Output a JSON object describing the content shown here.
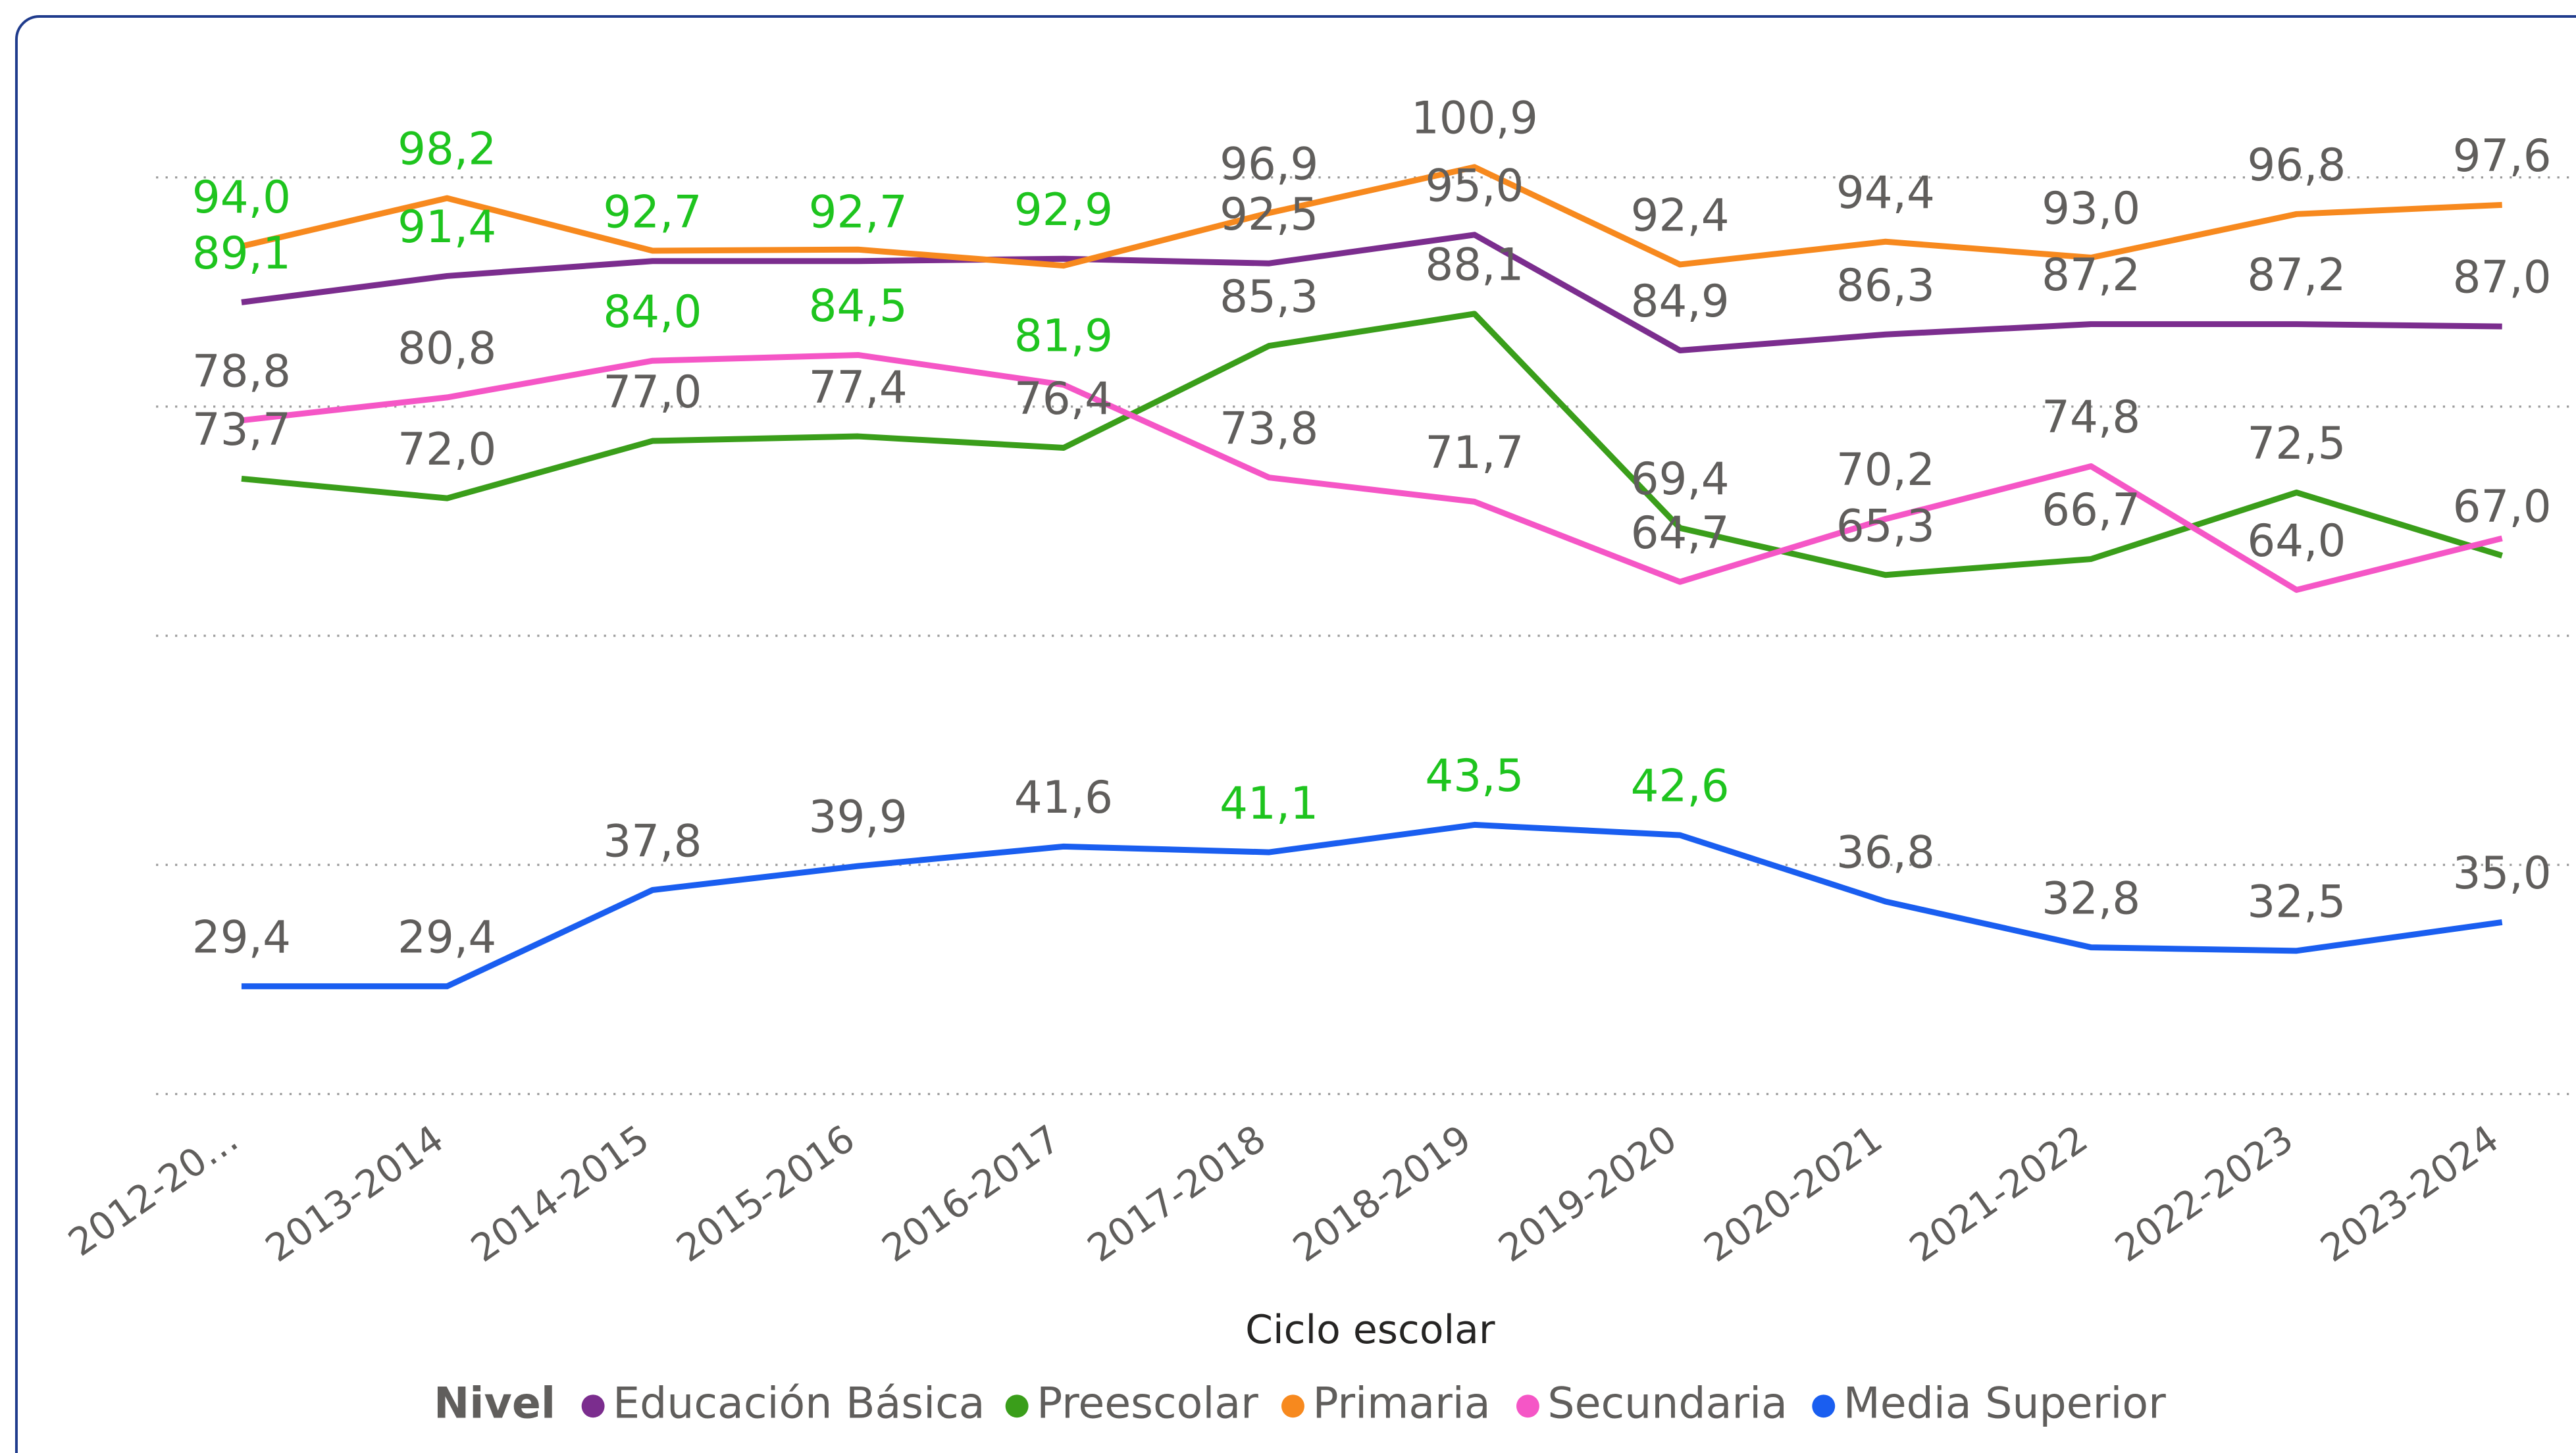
{
  "chart_data": {
    "type": "line",
    "x_label": "Ciclo escolar",
    "legend_title": "Nivel",
    "legend": "bottom",
    "grid": true,
    "categories": [
      "2012-20…",
      "2013-2014",
      "2014-2015",
      "2015-2016",
      "2016-2017",
      "2017-2018",
      "2018-2019",
      "2019-2020",
      "2020-2021",
      "2021-2022",
      "2022-2023",
      "2023-2024"
    ],
    "ylim": [
      20,
      100
    ],
    "yticks": [
      20,
      40,
      60,
      80,
      100
    ],
    "series": [
      {
        "name": "Educación Básica",
        "color": "#7b2d8e",
        "values": [
          89.1,
          91.4,
          92.7,
          92.7,
          92.9,
          92.5,
          95.0,
          84.9,
          86.3,
          87.2,
          87.2,
          87.0
        ],
        "value_labels": [
          "89,1",
          "91,4",
          "92,7",
          "92,7",
          "92,9",
          "92,5",
          "95,0",
          "84,9",
          "86,3",
          "87,2",
          "87,2",
          "87,0"
        ],
        "label_colors": [
          "#1ec41e",
          "#1ec41e",
          "#1ec41e",
          "#1ec41e",
          "#1ec41e",
          "#605e5c",
          "#605e5c",
          "#605e5c",
          "#605e5c",
          "#605e5c",
          "#605e5c",
          "#605e5c"
        ]
      },
      {
        "name": "Preescolar",
        "color": "#3a9e1a",
        "values": [
          73.7,
          72.0,
          77.0,
          77.4,
          76.4,
          85.3,
          88.1,
          69.4,
          65.3,
          66.7,
          72.5,
          67.0
        ],
        "value_labels": [
          "73,7",
          "72,0",
          "77,0",
          "77,4",
          "76,4",
          "85,3",
          "88,1",
          "69,4",
          "65,3",
          "66,7",
          "72,5",
          "67,0"
        ],
        "label_colors": [
          "#605e5c",
          "#605e5c",
          "#605e5c",
          "#605e5c",
          "#605e5c",
          "#605e5c",
          "#605e5c",
          "#605e5c",
          "#605e5c",
          "#605e5c",
          "#605e5c",
          "#605e5c"
        ]
      },
      {
        "name": "Primaria",
        "color": "#f7891e",
        "values": [
          94.0,
          98.2,
          93.6,
          93.7,
          92.3,
          96.9,
          100.9,
          92.4,
          94.4,
          93.0,
          96.8,
          97.6
        ],
        "value_labels": [
          "94,0",
          "98,2",
          null,
          null,
          null,
          "96,9",
          "100,9",
          "92,4",
          "94,4",
          "93,0",
          "96,8",
          "97,6"
        ],
        "label_colors": [
          "#1ec41e",
          "#1ec41e",
          null,
          null,
          null,
          "#605e5c",
          "#605e5c",
          "#605e5c",
          "#605e5c",
          "#605e5c",
          "#605e5c",
          "#605e5c"
        ]
      },
      {
        "name": "Secundaria",
        "color": "#f556c6",
        "values": [
          78.8,
          80.8,
          84.0,
          84.5,
          81.9,
          73.8,
          71.7,
          64.7,
          70.2,
          74.8,
          64.0,
          68.5
        ],
        "value_labels": [
          "78,8",
          "80,8",
          "84,0",
          "84,5",
          "81,9",
          "73,8",
          "71,7",
          "64,7",
          "70,2",
          "74,8",
          "64,0",
          null
        ],
        "label_colors": [
          "#605e5c",
          "#605e5c",
          "#1ec41e",
          "#1ec41e",
          "#1ec41e",
          "#605e5c",
          "#605e5c",
          "#605e5c",
          "#605e5c",
          "#605e5c",
          "#605e5c",
          null
        ]
      },
      {
        "name": "Media Superior",
        "color": "#1a5ef0",
        "values": [
          29.4,
          29.4,
          37.8,
          39.9,
          41.6,
          41.1,
          43.5,
          42.6,
          36.8,
          32.8,
          32.5,
          35.0
        ],
        "value_labels": [
          "29,4",
          "29,4",
          "37,8",
          "39,9",
          "41,6",
          "41,1",
          "43,5",
          "42,6",
          "36,8",
          "32,8",
          "32,5",
          "35,0"
        ],
        "label_colors": [
          "#605e5c",
          "#605e5c",
          "#605e5c",
          "#605e5c",
          "#605e5c",
          "#1ec41e",
          "#1ec41e",
          "#1ec41e",
          "#605e5c",
          "#605e5c",
          "#605e5c",
          "#605e5c"
        ]
      }
    ]
  }
}
